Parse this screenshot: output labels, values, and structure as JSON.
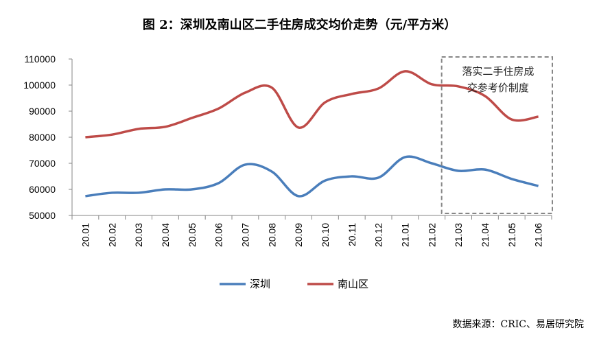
{
  "chart_data": {
    "type": "line",
    "title": "图 2：深圳及南山区二手住房成交均价走势（元/平方米）",
    "categories": [
      "20.01",
      "20.02",
      "20.03",
      "20.04",
      "20.05",
      "20.06",
      "20.07",
      "20.08",
      "20.09",
      "20.10",
      "20.11",
      "20.12",
      "21.01",
      "21.02",
      "21.03",
      "21.04",
      "21.05",
      "21.06"
    ],
    "series": [
      {
        "name": "深圳",
        "color": "#4a7ebb",
        "values": [
          57400,
          58700,
          58700,
          60000,
          60000,
          62400,
          69500,
          66800,
          57400,
          63400,
          65000,
          64500,
          72400,
          70000,
          67100,
          67600,
          64000,
          61300
        ]
      },
      {
        "name": "南山区",
        "color": "#be4b48",
        "values": [
          80000,
          81000,
          83200,
          84000,
          87400,
          91000,
          97100,
          99000,
          83700,
          93400,
          96600,
          98700,
          105300,
          100300,
          99500,
          95800,
          86800,
          87900
        ]
      }
    ],
    "ylim": [
      50000,
      110000
    ],
    "yticks": [
      "50000",
      "60000",
      "70000",
      "80000",
      "90000",
      "100000",
      "110000"
    ],
    "grid": false,
    "legend": "bottom",
    "annotation": {
      "text_line1": "落实二手住房成",
      "text_line2": "交参考价制度",
      "from": "21.03",
      "to": "21.06"
    },
    "source": "数据来源：CRIC、易居研究院"
  }
}
